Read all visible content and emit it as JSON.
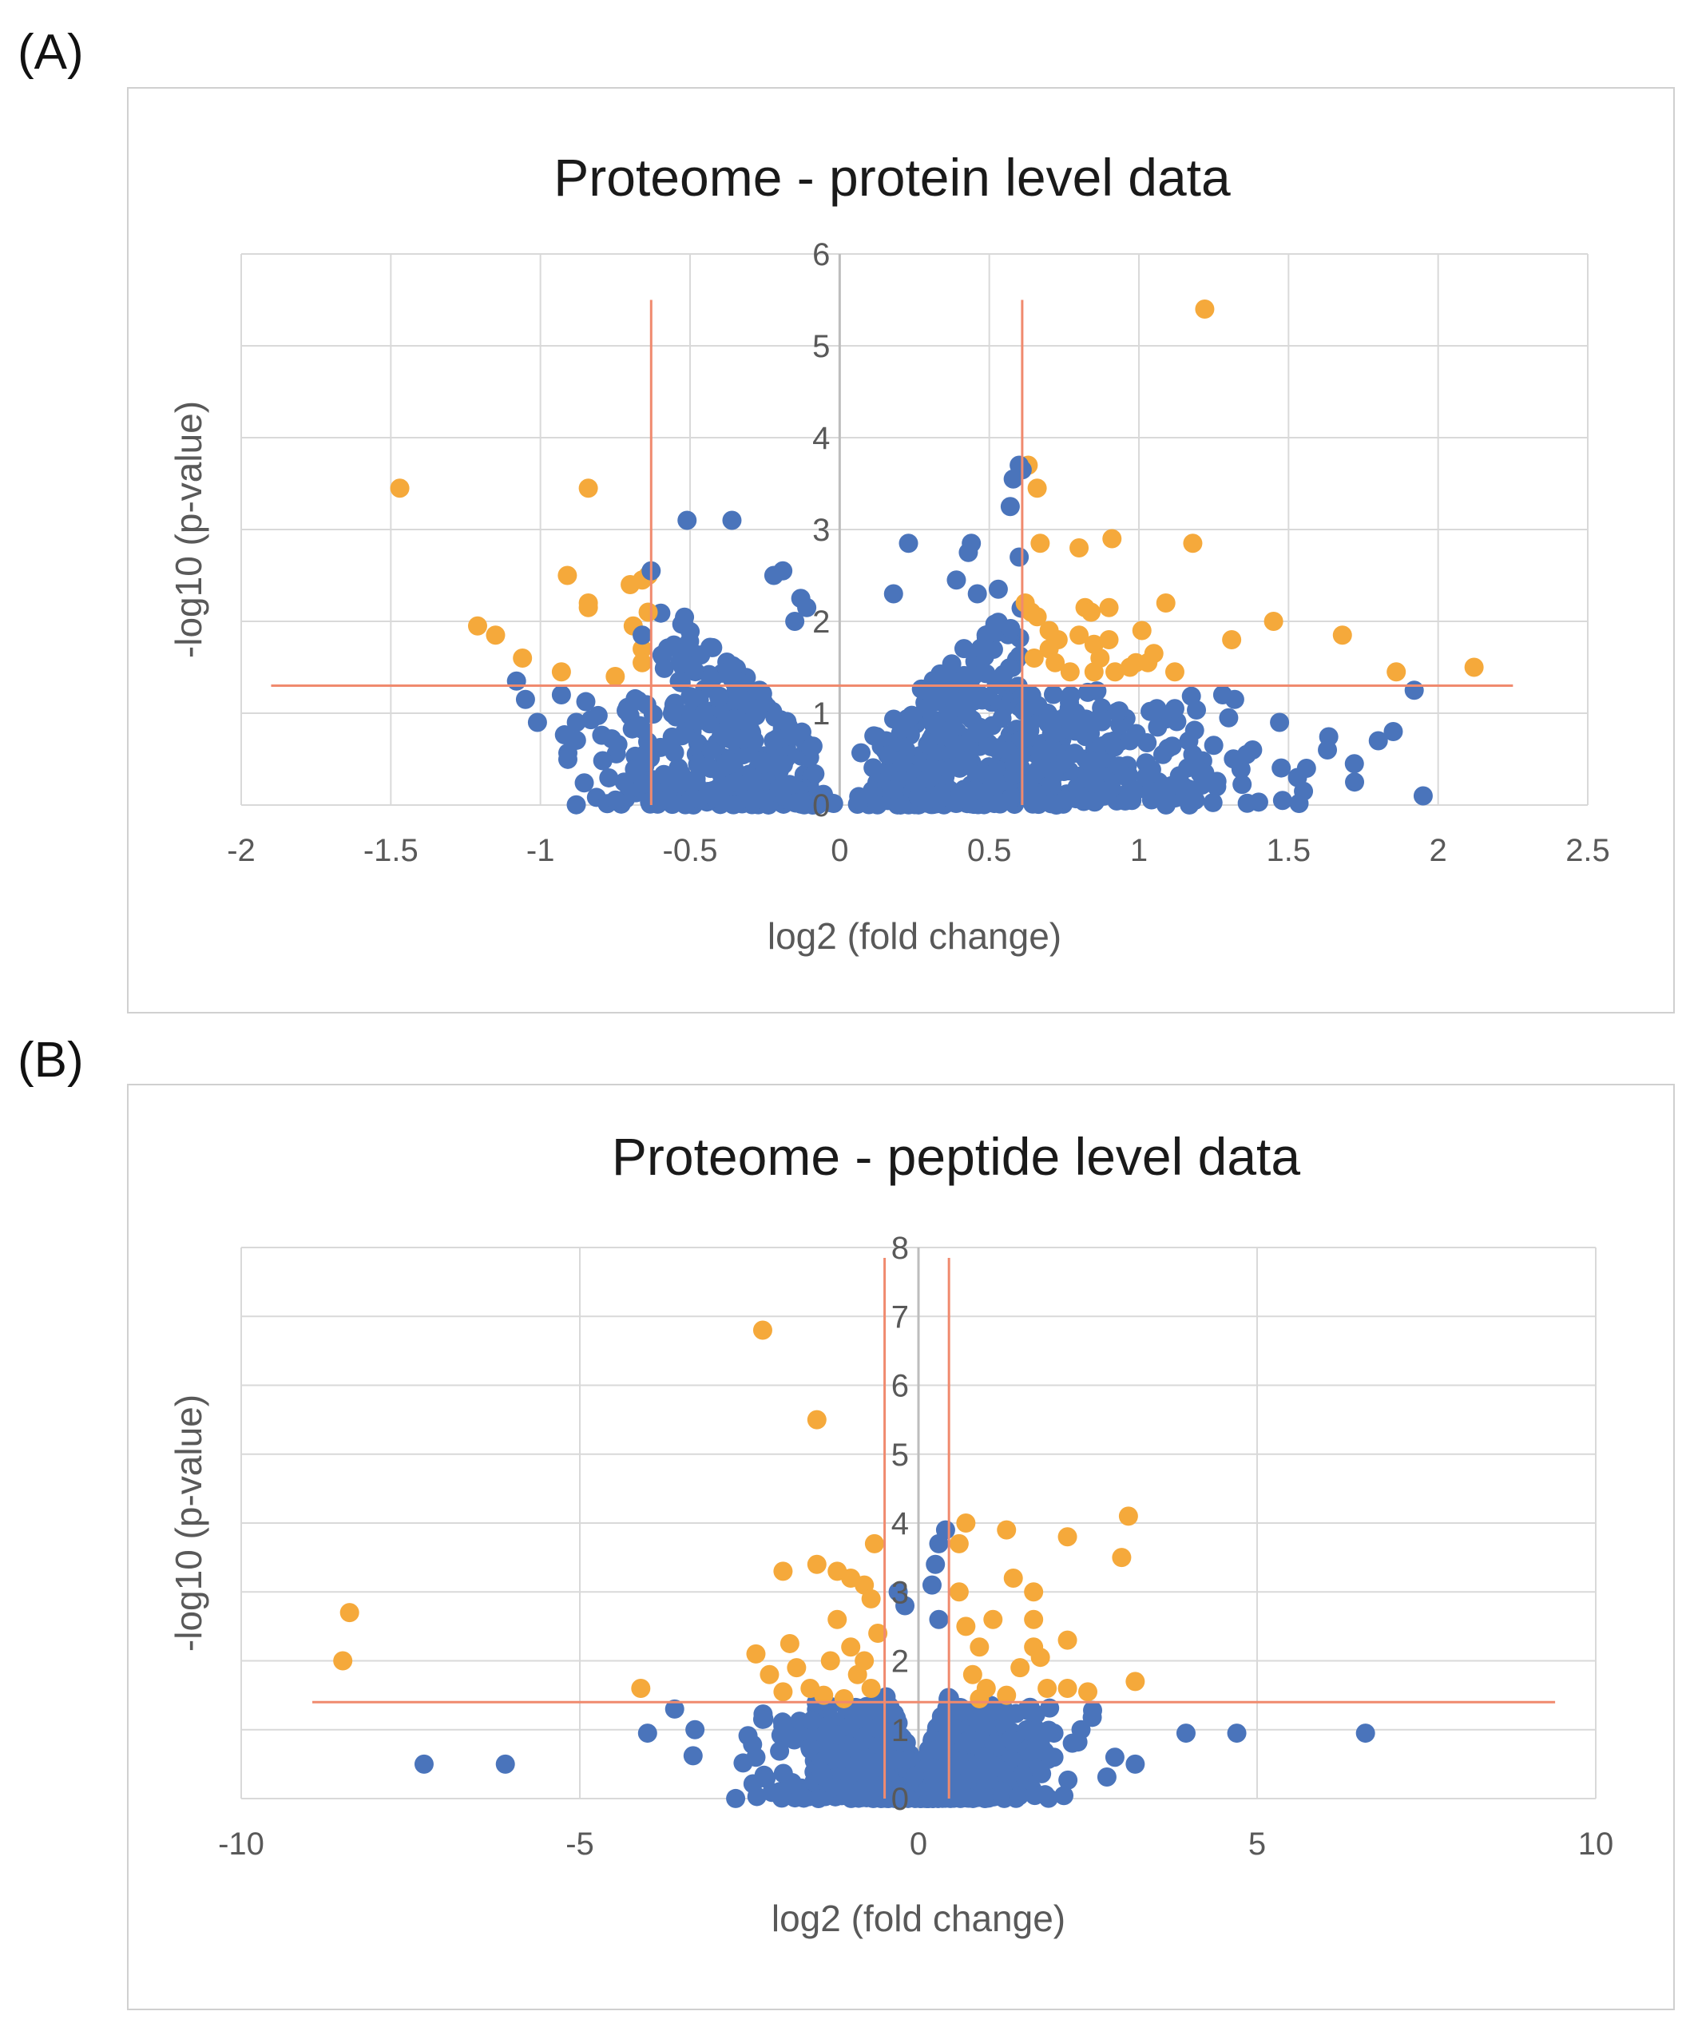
{
  "panel_labels": [
    "(A)",
    "(B)"
  ],
  "colors": {
    "insignificant": "#4a74bb",
    "significant": "#f5a93b",
    "threshold": "#f08a6e",
    "grid": "#d9d9d9",
    "zero_axis": "#bdbdbd",
    "frame": "#d0d0d0",
    "text": "#595959",
    "title": "#1a1a1a"
  },
  "chart_data": [
    {
      "type": "scatter",
      "title": "Proteome - protein level data",
      "xlabel": "log2 (fold change)",
      "ylabel": "-log10 (p-value)",
      "xlim": [
        -2,
        2.5
      ],
      "ylim": [
        0,
        6
      ],
      "xticks": [
        -2,
        -1.5,
        -1,
        -0.5,
        0,
        0.5,
        1,
        1.5,
        2,
        2.5
      ],
      "xtick_labels": [
        "-2",
        "-1.5",
        "-1",
        "-0.5",
        "0",
        "0.5",
        "1",
        "1.5",
        "2",
        "2.5"
      ],
      "yticks": [
        0,
        1,
        2,
        3,
        4,
        5,
        6
      ],
      "ytick_labels": [
        "0",
        "1",
        "2",
        "3",
        "4",
        "5",
        "6"
      ],
      "grid": true,
      "thresholds": {
        "x": [
          -0.63,
          0.61
        ],
        "y": 1.3,
        "v_extent": [
          0,
          5.5
        ],
        "h_extent": [
          -1.9,
          2.25
        ]
      },
      "cloud_seed": 7,
      "cloud_count": 900,
      "series": [
        {
          "name": "significant",
          "points": [
            [
              1.22,
              5.4
            ],
            [
              0.63,
              3.7
            ],
            [
              0.66,
              3.45
            ],
            [
              0.67,
              2.85
            ],
            [
              0.8,
              2.8
            ],
            [
              0.91,
              2.9
            ],
            [
              1.18,
              2.85
            ],
            [
              -1.47,
              3.45
            ],
            [
              -0.84,
              3.45
            ],
            [
              -0.91,
              2.5
            ],
            [
              -0.7,
              2.4
            ],
            [
              -0.66,
              2.45
            ],
            [
              -0.64,
              2.5
            ],
            [
              -0.84,
              2.2
            ],
            [
              -0.84,
              2.15
            ],
            [
              -0.64,
              2.1
            ],
            [
              -0.69,
              1.95
            ],
            [
              -0.66,
              1.7
            ],
            [
              -0.66,
              1.55
            ],
            [
              -1.21,
              1.95
            ],
            [
              -1.15,
              1.85
            ],
            [
              -1.06,
              1.6
            ],
            [
              -0.93,
              1.45
            ],
            [
              -0.75,
              1.4
            ],
            [
              0.64,
              2.1
            ],
            [
              0.66,
              2.05
            ],
            [
              0.7,
              1.9
            ],
            [
              0.73,
              1.8
            ],
            [
              0.7,
              1.7
            ],
            [
              0.72,
              1.55
            ],
            [
              0.82,
              2.15
            ],
            [
              0.84,
              2.1
            ],
            [
              0.9,
              2.15
            ],
            [
              0.8,
              1.85
            ],
            [
              0.85,
              1.75
            ],
            [
              0.9,
              1.8
            ],
            [
              0.85,
              1.45
            ],
            [
              0.92,
              1.45
            ],
            [
              0.97,
              1.5
            ],
            [
              0.99,
              1.55
            ],
            [
              1.01,
              1.9
            ],
            [
              1.09,
              2.2
            ],
            [
              1.03,
              1.55
            ],
            [
              1.12,
              1.45
            ],
            [
              1.31,
              1.8
            ],
            [
              1.45,
              2.0
            ],
            [
              1.68,
              1.85
            ],
            [
              1.86,
              1.45
            ],
            [
              2.12,
              1.5
            ],
            [
              0.62,
              2.2
            ],
            [
              0.65,
              1.6
            ],
            [
              0.87,
              1.6
            ],
            [
              0.77,
              1.45
            ],
            [
              1.05,
              1.65
            ]
          ]
        },
        {
          "name": "insignificant",
          "points": [
            [
              0.6,
              3.7
            ],
            [
              0.61,
              3.65
            ],
            [
              0.58,
              3.55
            ],
            [
              0.57,
              3.25
            ],
            [
              0.6,
              2.7
            ],
            [
              0.44,
              2.85
            ],
            [
              0.43,
              2.75
            ],
            [
              0.23,
              2.85
            ],
            [
              0.39,
              2.45
            ],
            [
              0.46,
              2.3
            ],
            [
              0.53,
              2.35
            ],
            [
              0.18,
              2.3
            ],
            [
              -0.51,
              3.1
            ],
            [
              -0.36,
              3.1
            ],
            [
              -0.19,
              2.55
            ],
            [
              -0.22,
              2.5
            ],
            [
              -0.63,
              2.55
            ],
            [
              -0.13,
              2.25
            ],
            [
              -0.15,
              2.0
            ],
            [
              -0.11,
              2.15
            ],
            [
              1.92,
              1.25
            ],
            [
              1.95,
              0.1
            ],
            [
              1.85,
              0.8
            ],
            [
              1.8,
              0.7
            ],
            [
              1.72,
              0.45
            ],
            [
              1.63,
              0.6
            ],
            [
              1.56,
              0.4
            ],
            [
              1.53,
              0.3
            ],
            [
              1.55,
              0.15
            ],
            [
              1.48,
              0.05
            ],
            [
              1.47,
              0.9
            ],
            [
              1.36,
              0.55
            ],
            [
              1.28,
              1.2
            ],
            [
              1.32,
              1.15
            ],
            [
              1.3,
              0.95
            ],
            [
              1.25,
              0.65
            ],
            [
              1.18,
              0.55
            ],
            [
              1.22,
              0.35
            ],
            [
              1.15,
              0.2
            ],
            [
              1.12,
              1.05
            ],
            [
              -1.05,
              1.15
            ],
            [
              -1.01,
              0.9
            ],
            [
              -1.08,
              1.35
            ],
            [
              -0.93,
              1.2
            ],
            [
              -0.88,
              0.9
            ],
            [
              -0.72,
              0.25
            ],
            [
              -0.66,
              1.85
            ],
            [
              1.38,
              0.6
            ],
            [
              1.26,
              0.2
            ],
            [
              1.06,
              1.05
            ],
            [
              0.97,
              0.7
            ],
            [
              0.96,
              0.3
            ],
            [
              1.08,
              0.55
            ],
            [
              1.04,
              0.15
            ]
          ]
        }
      ]
    },
    {
      "type": "scatter",
      "title": "Proteome - peptide level data",
      "xlabel": "log2 (fold change)",
      "ylabel": "-log10 (p-value)",
      "xlim": [
        -10,
        10
      ],
      "ylim": [
        0,
        8
      ],
      "xticks": [
        -10,
        -5,
        0,
        5,
        10
      ],
      "xtick_labels": [
        "-10",
        "-5",
        "0",
        "5",
        "10"
      ],
      "yticks": [
        0,
        1,
        2,
        3,
        4,
        5,
        6,
        7,
        8
      ],
      "ytick_labels": [
        "0",
        "1",
        "2",
        "3",
        "4",
        "5",
        "6",
        "7",
        "8"
      ],
      "grid": true,
      "thresholds": {
        "x": [
          -0.5,
          0.45
        ],
        "y": 1.4,
        "v_extent": [
          0,
          7.85
        ],
        "h_extent": [
          -8.95,
          9.4
        ]
      },
      "cloud_seed": 13,
      "cloud_count": 1100,
      "series": [
        {
          "name": "significant",
          "points": [
            [
              -2.3,
              6.8
            ],
            [
              -1.5,
              5.5
            ],
            [
              -8.4,
              2.7
            ],
            [
              -8.5,
              2.0
            ],
            [
              -4.1,
              1.6
            ],
            [
              3.1,
              4.1
            ],
            [
              3.0,
              3.5
            ],
            [
              2.2,
              3.8
            ],
            [
              1.3,
              3.9
            ],
            [
              0.7,
              4.0
            ],
            [
              0.6,
              3.7
            ],
            [
              -0.65,
              3.7
            ],
            [
              -2.0,
              3.3
            ],
            [
              -1.5,
              3.4
            ],
            [
              -1.2,
              3.3
            ],
            [
              -1.0,
              3.2
            ],
            [
              -0.8,
              3.1
            ],
            [
              -0.7,
              2.9
            ],
            [
              -2.4,
              2.1
            ],
            [
              -1.9,
              2.25
            ],
            [
              -1.8,
              1.9
            ],
            [
              -2.2,
              1.8
            ],
            [
              -1.6,
              1.6
            ],
            [
              -2.0,
              1.55
            ],
            [
              3.2,
              1.7
            ],
            [
              2.5,
              1.55
            ],
            [
              2.2,
              1.6
            ],
            [
              1.7,
              3.0
            ],
            [
              1.7,
              2.6
            ],
            [
              1.7,
              2.2
            ],
            [
              1.8,
              2.05
            ],
            [
              2.2,
              2.3
            ],
            [
              1.5,
              1.9
            ],
            [
              1.4,
              3.2
            ],
            [
              1.1,
              2.6
            ],
            [
              0.9,
              2.2
            ],
            [
              0.8,
              1.8
            ],
            [
              1.0,
              1.6
            ],
            [
              -1.2,
              2.6
            ],
            [
              -1.0,
              2.2
            ],
            [
              -1.3,
              2.0
            ],
            [
              -0.9,
              1.8
            ],
            [
              -0.7,
              1.6
            ],
            [
              0.6,
              3.0
            ],
            [
              0.7,
              2.5
            ],
            [
              -0.6,
              2.4
            ],
            [
              -0.8,
              2.0
            ],
            [
              1.3,
              1.5
            ],
            [
              1.9,
              1.6
            ],
            [
              -1.4,
              1.5
            ],
            [
              0.9,
              1.45
            ],
            [
              -1.1,
              1.45
            ]
          ]
        },
        {
          "name": "insignificant",
          "points": [
            [
              -7.3,
              0.5
            ],
            [
              -6.1,
              0.5
            ],
            [
              -3.6,
              1.3
            ],
            [
              -4.0,
              0.95
            ],
            [
              -3.3,
              1.0
            ],
            [
              3.95,
              0.95
            ],
            [
              4.7,
              0.95
            ],
            [
              6.6,
              0.95
            ],
            [
              3.2,
              0.5
            ],
            [
              2.9,
              0.6
            ],
            [
              2.0,
              0.6
            ],
            [
              2.4,
              1.0
            ],
            [
              2.0,
              0.95
            ],
            [
              -2.4,
              0.6
            ],
            [
              -2.3,
              1.15
            ],
            [
              0.4,
              3.9
            ],
            [
              0.3,
              3.7
            ],
            [
              0.25,
              3.4
            ],
            [
              0.2,
              3.1
            ],
            [
              -0.3,
              3.0
            ],
            [
              -0.2,
              2.8
            ],
            [
              0.3,
              2.6
            ],
            [
              1.6,
              1.0
            ],
            [
              1.8,
              0.8
            ],
            [
              -1.9,
              0.9
            ]
          ]
        }
      ]
    }
  ]
}
